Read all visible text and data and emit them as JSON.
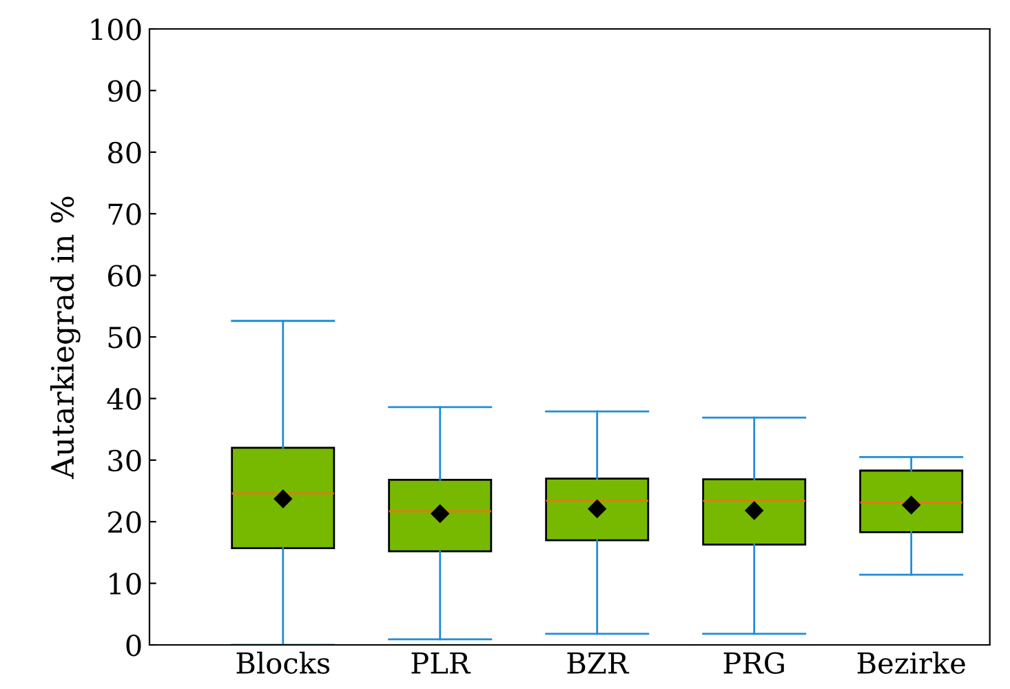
{
  "chart_data": {
    "type": "box",
    "ylabel": "Autarkiegrad in %",
    "categories": [
      "Blocks",
      "PLR",
      "BZR",
      "PRG",
      "Bezirke"
    ],
    "boxes": [
      {
        "low": 0,
        "q1": 15.7,
        "median": 24.6,
        "q3": 32.0,
        "high": 52.6,
        "mean": 23.7
      },
      {
        "low": 0.9,
        "q1": 15.2,
        "median": 21.7,
        "q3": 26.8,
        "high": 38.6,
        "mean": 21.3
      },
      {
        "low": 1.8,
        "q1": 17.0,
        "median": 23.4,
        "q3": 27.0,
        "high": 37.9,
        "mean": 22.1
      },
      {
        "low": 1.8,
        "q1": 16.3,
        "median": 23.4,
        "q3": 26.9,
        "high": 36.9,
        "mean": 21.8
      },
      {
        "low": 11.4,
        "q1": 18.3,
        "median": 23.1,
        "q3": 28.3,
        "high": 30.5,
        "mean": 22.7
      }
    ],
    "color": "#77b900",
    "ylim": [
      0,
      100
    ],
    "yticks": [
      0,
      10,
      20,
      30,
      40,
      50,
      60,
      70,
      80,
      90,
      100
    ],
    "grid": false,
    "legend": false
  }
}
